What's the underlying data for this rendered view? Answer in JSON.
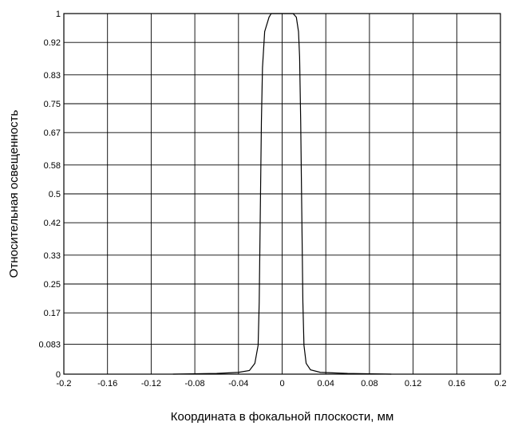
{
  "chart_data": {
    "type": "line",
    "title": "",
    "xlabel": "Координата в фокальной плоскости, мм",
    "ylabel": "Относительная освещенность",
    "xlim": [
      -0.2,
      0.2
    ],
    "ylim": [
      0,
      1
    ],
    "grid": true,
    "legend": "none",
    "x_ticks": [
      -0.2,
      -0.16,
      -0.12,
      -0.08,
      -0.04,
      0,
      0.04,
      0.08,
      0.12,
      0.16,
      0.2
    ],
    "x_tick_labels": [
      "-0.2",
      "-0.16",
      "-0.12",
      "-0.08",
      "-0.04",
      "0",
      "0.04",
      "0.08",
      "0.12",
      "0.16",
      "0.2"
    ],
    "y_ticks": [
      0,
      0.083,
      0.17,
      0.25,
      0.33,
      0.42,
      0.5,
      0.58,
      0.67,
      0.75,
      0.83,
      0.92,
      1
    ],
    "y_tick_labels": [
      "0",
      "0.083",
      "0.17",
      "0.25",
      "0.33",
      "0.42",
      "0.5",
      "0.58",
      "0.67",
      "0.75",
      "0.83",
      "0.92",
      "1"
    ],
    "series": [
      {
        "color": "#000000",
        "x": [
          -0.1,
          -0.06,
          -0.04,
          -0.03,
          -0.025,
          -0.022,
          -0.021,
          -0.02,
          -0.019,
          -0.018,
          -0.016,
          -0.012,
          -0.01,
          -0.008,
          -0.005,
          0,
          0.005,
          0.01,
          0.013,
          0.015,
          0.016,
          0.017,
          0.018,
          0.019,
          0.02,
          0.022,
          0.026,
          0.035,
          0.06,
          0.1
        ],
        "y": [
          0,
          0.002,
          0.005,
          0.01,
          0.03,
          0.08,
          0.2,
          0.45,
          0.7,
          0.85,
          0.95,
          0.99,
          1,
          1,
          1,
          1,
          1,
          1,
          0.99,
          0.95,
          0.88,
          0.7,
          0.45,
          0.2,
          0.08,
          0.03,
          0.012,
          0.005,
          0.002,
          0
        ]
      }
    ]
  }
}
